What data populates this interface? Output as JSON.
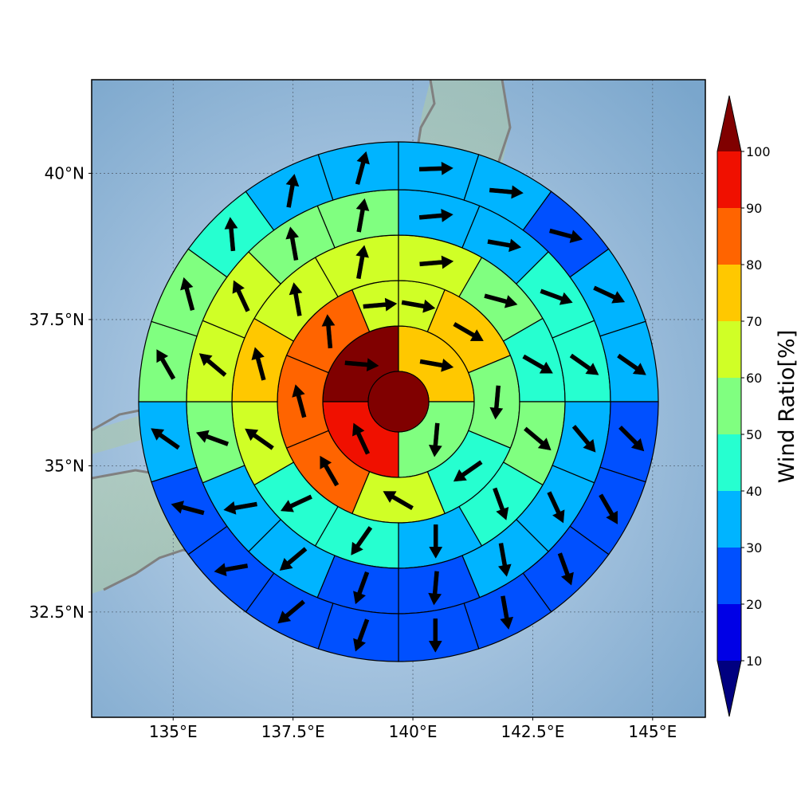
{
  "chart_data": {
    "type": "heatmap",
    "subtype": "polar-sector wind-ratio map with wind-direction arrows",
    "x_ticks": [
      "135°E",
      "137.5°E",
      "140°E",
      "142.5°E",
      "145°E"
    ],
    "x_tick_values": [
      135,
      137.5,
      140,
      142.5,
      145
    ],
    "y_ticks": [
      "40°N",
      "37.5°N",
      "35°N",
      "32.5°N"
    ],
    "y_tick_values": [
      40,
      37.5,
      35,
      32.5
    ],
    "xlim": [
      133.3,
      146.1
    ],
    "ylim": [
      30.7,
      41.6
    ],
    "grid": true,
    "center_value": 100,
    "colorbar": {
      "label": "Wind Ratio[%]",
      "ticks": [
        "10",
        "20",
        "30",
        "40",
        "50",
        "60",
        "70",
        "80",
        "90",
        "100"
      ],
      "levels": [
        10,
        20,
        30,
        40,
        50,
        60,
        70,
        80,
        90,
        100
      ],
      "colors": [
        "#000080",
        "#0000e6",
        "#0050ff",
        "#00b4ff",
        "#26ffd0",
        "#80ff80",
        "#d0ff26",
        "#ffc800",
        "#ff6400",
        "#f01000",
        "#800000"
      ]
    },
    "rings": [
      {
        "ring": 1,
        "sectors": 4,
        "bounds": [
          -90,
          0,
          90,
          180,
          270
        ],
        "values": [
          100,
          72,
          55,
          95
        ],
        "arrows": [
          95,
          100,
          185,
          335
        ]
      },
      {
        "ring": 2,
        "sectors": 8,
        "bounds": [
          -67.5,
          -22.5,
          0,
          22.5,
          67.5,
          112.5,
          157.5,
          202.5,
          247.5,
          292.5
        ],
        "values": [
          85,
          65,
          65,
          75,
          55,
          45,
          65,
          85,
          85
        ],
        "arrows": [
          355,
          85,
          100,
          120,
          185,
          235,
          300,
          330,
          345
        ]
      },
      {
        "ring": 3,
        "sectors": 12,
        "bounds": [
          -30,
          0,
          30,
          60,
          90,
          120,
          150,
          180,
          210,
          240,
          270,
          300,
          330
        ],
        "values": [
          65,
          65,
          55,
          45,
          55,
          45,
          35,
          45,
          45,
          65,
          75,
          65
        ],
        "arrows": [
          10,
          85,
          105,
          120,
          130,
          160,
          180,
          215,
          245,
          305,
          345,
          350
        ]
      },
      {
        "ring": 4,
        "sectors": 16,
        "bounds": [
          -22.5,
          0,
          22.5,
          45,
          67.5,
          90,
          112.5,
          135,
          157.5,
          180,
          202.5,
          225,
          247.5,
          270,
          292.5,
          315,
          337.5
        ],
        "values": [
          55,
          35,
          35,
          45,
          45,
          35,
          35,
          35,
          25,
          25,
          35,
          35,
          55,
          65,
          65,
          55
        ],
        "arrows": [
          10,
          85,
          100,
          110,
          125,
          140,
          155,
          170,
          185,
          200,
          230,
          260,
          290,
          310,
          335,
          350
        ]
      },
      {
        "ring": 5,
        "sectors": 20,
        "bounds": [
          -18,
          0,
          18,
          36,
          54,
          72,
          90,
          108,
          126,
          144,
          162,
          180,
          198,
          216,
          234,
          252,
          270,
          288,
          306,
          324,
          342
        ],
        "values": [
          35,
          35,
          35,
          25,
          35,
          35,
          25,
          25,
          25,
          25,
          25,
          25,
          25,
          25,
          25,
          35,
          55,
          55,
          45,
          35
        ],
        "arrows": [
          15,
          88,
          95,
          105,
          115,
          125,
          135,
          150,
          160,
          170,
          180,
          200,
          230,
          260,
          285,
          305,
          330,
          345,
          355,
          10
        ]
      }
    ]
  }
}
